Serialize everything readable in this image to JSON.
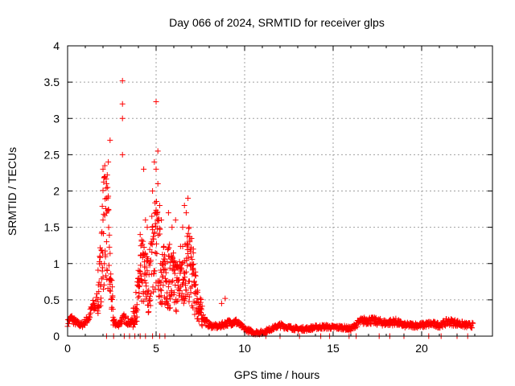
{
  "chart_data": {
    "type": "scatter",
    "title": "Day 066 of 2024, SRMTID for receiver glps",
    "xlabel": "GPS time / hours",
    "ylabel": "SRMTID / TECUs",
    "xlim": [
      0,
      24
    ],
    "ylim": [
      0,
      4
    ],
    "x_ticks": [
      0,
      5,
      10,
      15,
      20
    ],
    "y_ticks": [
      0,
      0.5,
      1,
      1.5,
      2,
      2.5,
      3,
      3.5,
      4
    ],
    "x_tick_labels": [
      "0",
      "5",
      "10",
      "15",
      "20"
    ],
    "y_tick_labels": [
      "0",
      "0.5",
      "1",
      "1.5",
      "2",
      "2.5",
      "3",
      "3.5",
      "4"
    ],
    "grid": true,
    "marker": "+",
    "color": "#ff0000",
    "profile": [
      [
        0.0,
        0.18
      ],
      [
        0.2,
        0.25
      ],
      [
        0.4,
        0.2
      ],
      [
        0.6,
        0.17
      ],
      [
        0.8,
        0.15
      ],
      [
        1.0,
        0.2
      ],
      [
        1.2,
        0.25
      ],
      [
        1.4,
        0.4
      ],
      [
        1.6,
        0.42
      ],
      [
        1.8,
        0.7
      ],
      [
        2.0,
        1.4
      ],
      [
        2.2,
        1.7
      ],
      [
        2.4,
        0.8
      ],
      [
        2.6,
        0.2
      ],
      [
        2.8,
        0.15
      ],
      [
        3.0,
        0.2
      ],
      [
        3.2,
        0.25
      ],
      [
        3.4,
        0.2
      ],
      [
        3.6,
        0.18
      ],
      [
        3.8,
        0.3
      ],
      [
        4.0,
        0.6
      ],
      [
        4.2,
        0.9
      ],
      [
        4.4,
        0.8
      ],
      [
        4.6,
        0.7
      ],
      [
        4.8,
        1.2
      ],
      [
        5.0,
        1.3
      ],
      [
        5.2,
        1.0
      ],
      [
        5.4,
        0.8
      ],
      [
        5.6,
        0.9
      ],
      [
        5.8,
        0.8
      ],
      [
        6.0,
        0.75
      ],
      [
        6.2,
        0.7
      ],
      [
        6.4,
        0.85
      ],
      [
        6.6,
        0.9
      ],
      [
        6.8,
        1.0
      ],
      [
        7.0,
        0.9
      ],
      [
        7.2,
        0.6
      ],
      [
        7.4,
        0.4
      ],
      [
        7.6,
        0.3
      ],
      [
        7.8,
        0.2
      ],
      [
        8.0,
        0.15
      ],
      [
        8.5,
        0.13
      ],
      [
        9.0,
        0.18
      ],
      [
        9.5,
        0.2
      ],
      [
        10.0,
        0.1
      ],
      [
        10.5,
        0.05
      ],
      [
        11.0,
        0.05
      ],
      [
        11.5,
        0.1
      ],
      [
        12.0,
        0.15
      ],
      [
        12.5,
        0.12
      ],
      [
        13.0,
        0.1
      ],
      [
        13.5,
        0.1
      ],
      [
        14.0,
        0.12
      ],
      [
        14.5,
        0.13
      ],
      [
        15.0,
        0.12
      ],
      [
        15.5,
        0.12
      ],
      [
        16.0,
        0.1
      ],
      [
        16.5,
        0.2
      ],
      [
        17.0,
        0.22
      ],
      [
        17.5,
        0.2
      ],
      [
        18.0,
        0.18
      ],
      [
        18.5,
        0.2
      ],
      [
        19.0,
        0.15
      ],
      [
        19.5,
        0.15
      ],
      [
        20.0,
        0.15
      ],
      [
        20.5,
        0.17
      ],
      [
        21.0,
        0.15
      ],
      [
        21.5,
        0.2
      ],
      [
        22.0,
        0.18
      ],
      [
        22.5,
        0.15
      ],
      [
        22.9,
        0.15
      ]
    ],
    "spikes": [
      [
        3.1,
        3.52
      ],
      [
        3.1,
        3.2
      ],
      [
        3.1,
        3.0
      ],
      [
        3.1,
        2.5
      ],
      [
        2.4,
        2.7
      ],
      [
        2.3,
        2.4
      ],
      [
        2.0,
        2.3
      ],
      [
        2.1,
        2.2
      ],
      [
        2.2,
        1.9
      ],
      [
        2.0,
        1.6
      ],
      [
        2.2,
        1.3
      ],
      [
        1.9,
        1.0
      ],
      [
        5.0,
        3.23
      ],
      [
        5.1,
        2.55
      ],
      [
        4.9,
        2.4
      ],
      [
        5.0,
        2.3
      ],
      [
        5.1,
        2.1
      ],
      [
        4.8,
        2.0
      ],
      [
        5.2,
        1.8
      ],
      [
        5.3,
        1.6
      ],
      [
        4.3,
        2.3
      ],
      [
        4.4,
        1.6
      ],
      [
        4.5,
        1.5
      ],
      [
        4.1,
        1.4
      ],
      [
        6.8,
        1.9
      ],
      [
        6.7,
        1.7
      ],
      [
        6.6,
        1.8
      ],
      [
        6.5,
        1.5
      ],
      [
        6.9,
        1.3
      ],
      [
        7.1,
        1.2
      ],
      [
        5.7,
        1.7
      ],
      [
        5.9,
        1.5
      ],
      [
        6.1,
        1.6
      ],
      [
        8.9,
        0.52
      ],
      [
        8.7,
        0.45
      ]
    ],
    "zeros": [
      [
        2.2,
        0.0
      ],
      [
        2.6,
        0.0
      ],
      [
        3.2,
        0.0
      ],
      [
        3.5,
        0.0
      ],
      [
        3.8,
        0.0
      ],
      [
        4.1,
        0.0
      ],
      [
        4.4,
        0.0
      ],
      [
        4.8,
        0.0
      ],
      [
        5.2,
        0.0
      ],
      [
        5.5,
        0.0
      ],
      [
        11.2,
        0.0
      ],
      [
        12.0,
        0.0
      ],
      [
        13.1,
        0.0
      ],
      [
        14.3,
        0.0
      ],
      [
        14.8,
        0.0
      ],
      [
        15.9,
        0.0
      ],
      [
        16.3,
        0.0
      ],
      [
        17.6,
        0.0
      ],
      [
        18.2,
        0.0
      ],
      [
        19.0,
        0.0
      ],
      [
        20.4,
        0.0
      ],
      [
        21.1,
        0.0
      ],
      [
        22.0,
        0.0
      ],
      [
        22.6,
        0.0
      ]
    ]
  }
}
